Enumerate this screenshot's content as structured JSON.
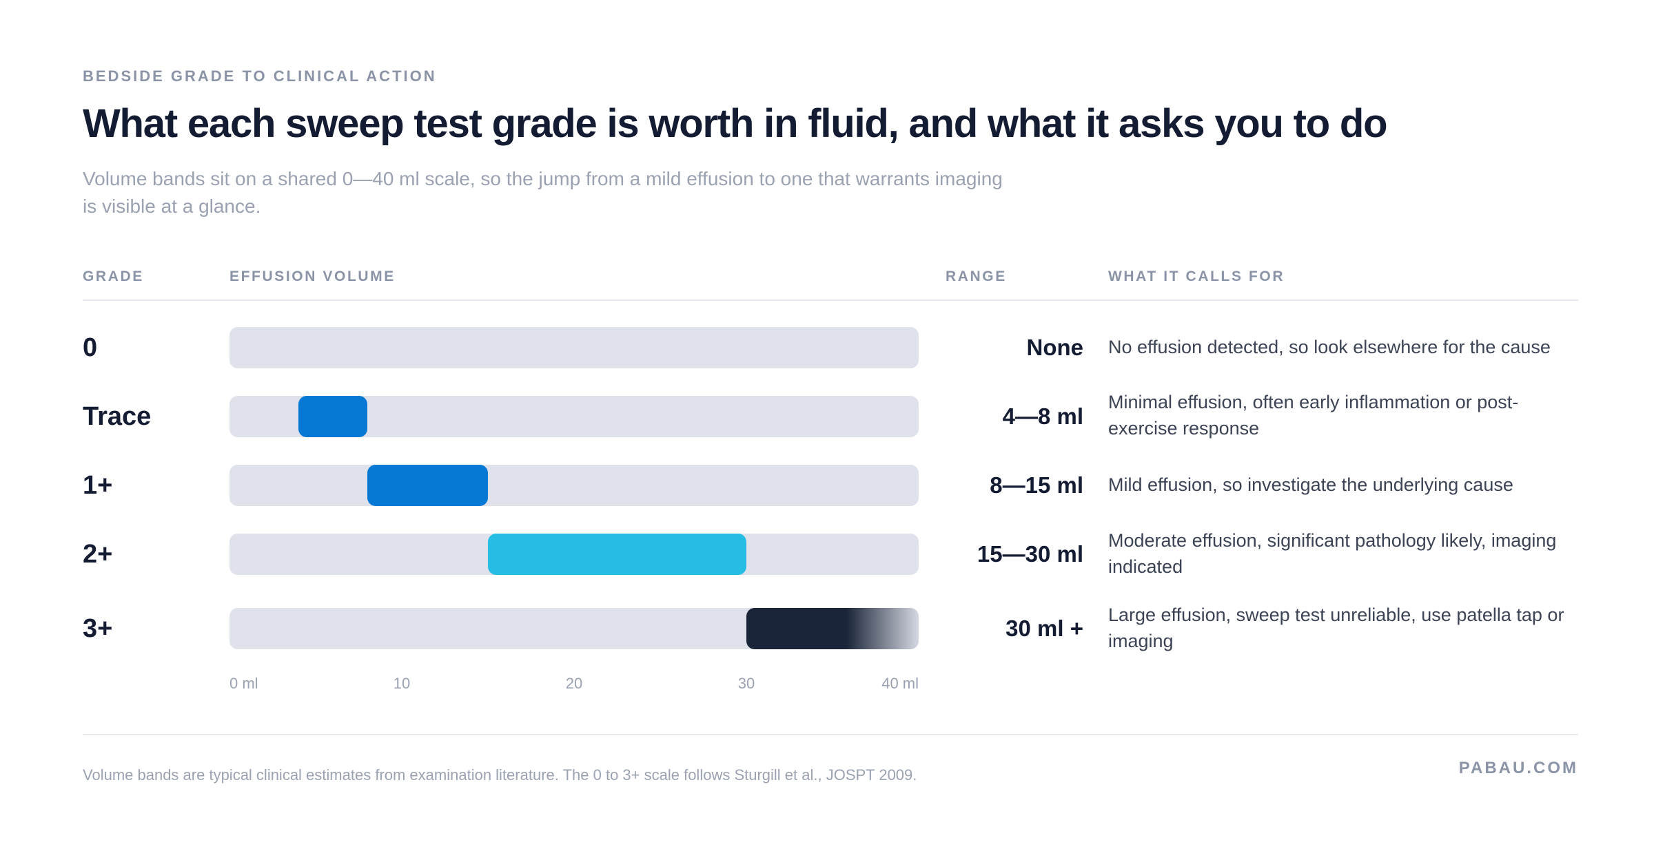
{
  "eyebrow": "BEDSIDE GRADE TO CLINICAL ACTION",
  "title": "What each sweep test grade is worth in fluid, and what it asks you to do",
  "subtitle": "Volume bands sit on a shared 0—40 ml scale, so the jump from a mild effusion to one that warrants imaging is visible at a glance.",
  "columns": {
    "grade": "GRADE",
    "volume": "EFFUSION VOLUME",
    "range": "RANGE",
    "action": "WHAT IT CALLS FOR"
  },
  "chart_data": {
    "type": "bar",
    "orientation": "horizontal-range",
    "xlim": [
      0,
      40
    ],
    "x_unit": "ml",
    "tick_labels": [
      "0 ml",
      "10",
      "20",
      "30",
      "40 ml"
    ],
    "tick_values": [
      0,
      10,
      20,
      30,
      40
    ],
    "categories": [
      "0",
      "Trace",
      "1+",
      "2+",
      "3+"
    ],
    "rows": [
      {
        "grade": "0",
        "start": 0,
        "end": 0,
        "range_label": "None",
        "color": "",
        "fade": false,
        "action": "No effusion detected, so look elsewhere for the cause"
      },
      {
        "grade": "Trace",
        "start": 4,
        "end": 8,
        "range_label": "4—8 ml",
        "color": "#0778d4",
        "fade": false,
        "action": "Minimal effusion, often early inflammation or post-exercise response"
      },
      {
        "grade": "1+",
        "start": 8,
        "end": 15,
        "range_label": "8—15 ml",
        "color": "#0778d4",
        "fade": false,
        "action": "Mild effusion, so investigate the underlying cause"
      },
      {
        "grade": "2+",
        "start": 15,
        "end": 30,
        "range_label": "15—30 ml",
        "color": "#25bde3",
        "fade": false,
        "action": "Moderate effusion, significant pathology likely, imaging indicated"
      },
      {
        "grade": "3+",
        "start": 30,
        "end": 40,
        "range_label": "30 ml +",
        "color": "#1b2539",
        "fade": true,
        "action": "Large effusion, sweep test unreliable, use patella tap or imaging"
      }
    ]
  },
  "footnote": "Volume bands are typical clinical estimates from examination literature. The 0 to 3+ scale follows Sturgill et al., JOSPT 2009.",
  "brand": "PABAU.COM"
}
